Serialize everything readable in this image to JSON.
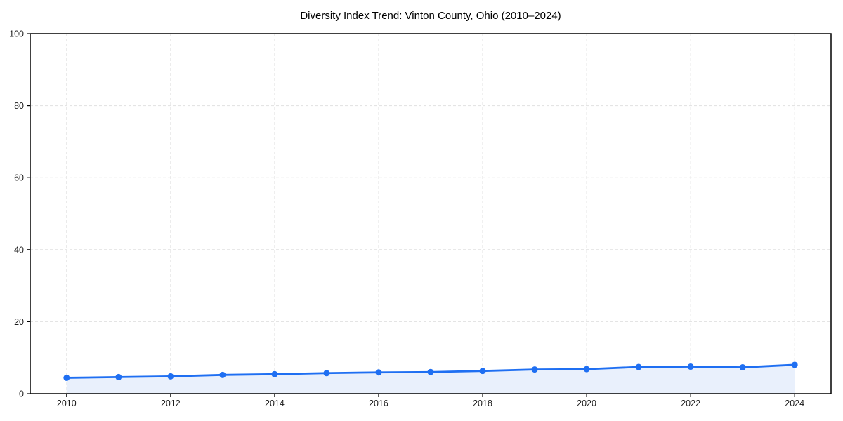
{
  "chart_data": {
    "type": "line",
    "title": "Diversity Index Trend: Vinton County, Ohio (2010–2024)",
    "series_name": "Diversity Index",
    "x": [
      2010,
      2011,
      2012,
      2013,
      2014,
      2015,
      2016,
      2017,
      2018,
      2019,
      2020,
      2021,
      2022,
      2023,
      2024
    ],
    "values": [
      4.4,
      4.6,
      4.8,
      5.2,
      5.4,
      5.7,
      5.9,
      6.0,
      6.3,
      6.7,
      6.8,
      7.4,
      7.5,
      7.3,
      8.0
    ],
    "xlabel": "",
    "ylabel": "",
    "xlim": [
      2009.3,
      2024.7
    ],
    "ylim": [
      0,
      100
    ],
    "xticks": [
      2010,
      2012,
      2014,
      2016,
      2018,
      2020,
      2022,
      2024
    ],
    "yticks": [
      0,
      20,
      40,
      60,
      80,
      100
    ],
    "grid": true,
    "grid_style": "dashed",
    "legend_position": "none",
    "marker": "circle",
    "colors": {
      "line": "#1f6ff2",
      "marker": "#1f6ff2",
      "area_fill": "#e9f0fc",
      "grid": "#e1e1e1",
      "axis_border": "#000000",
      "tick_label": "#1a1a1a",
      "title_text": "#000000",
      "background": "#ffffff"
    }
  }
}
